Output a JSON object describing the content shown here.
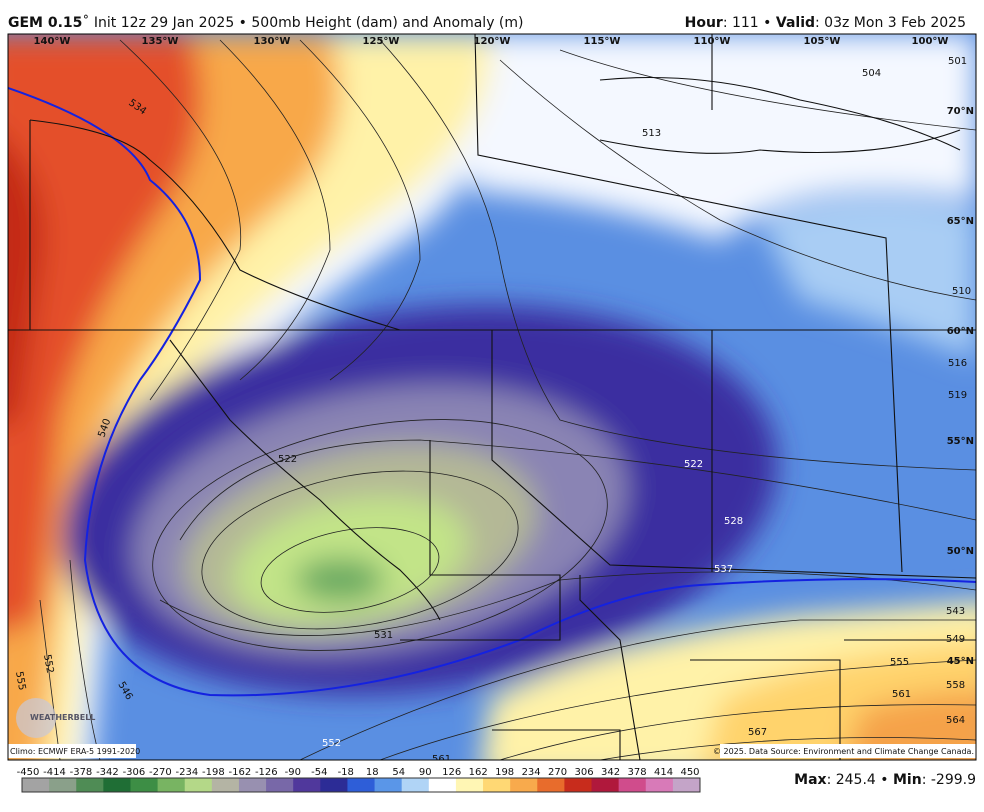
{
  "header": {
    "model": "GEM 0.15",
    "run": "˚ Init 12z 29 Jan 2025 • 500mb Height (dam) and Anomaly (m)",
    "hour_label": "Hour",
    "hour": ": 111 • ",
    "valid_label": "Valid",
    "valid": ": 03z Mon 3 Feb 2025"
  },
  "map": {
    "longitudes": [
      "140°W",
      "135°W",
      "130°W",
      "125°W",
      "120°W",
      "115°W",
      "110°W",
      "105°W",
      "100°W"
    ],
    "latitudes": [
      "70°N",
      "65°N",
      "60°N",
      "55°N",
      "50°N",
      "45°N"
    ],
    "contour_labels": [
      "534",
      "540",
      "546",
      "552",
      "555",
      "522",
      "531",
      "522",
      "528",
      "537",
      "543",
      "549",
      "555",
      "558",
      "561",
      "564",
      "567",
      "504",
      "501",
      "513",
      "510",
      "516",
      "519",
      "552",
      "561"
    ],
    "logo": "WEATHERBELL",
    "climo": "Climo: ECMWF ERA-5 1991-2020",
    "copyright": "© 2025. Data Source: Environment and Climate Change Canada."
  },
  "colorbar": {
    "ticks": [
      -450,
      -414,
      -378,
      -342,
      -306,
      -270,
      -234,
      -198,
      -162,
      -126,
      -90,
      -54,
      -18,
      18,
      54,
      90,
      126,
      162,
      198,
      234,
      270,
      306,
      342,
      378,
      414,
      450
    ],
    "colors": [
      "#a3a3a3",
      "#8aa08a",
      "#4f8c55",
      "#1f6e35",
      "#3d8e45",
      "#78b462",
      "#b4d888",
      "#b4b4a4",
      "#9890b0",
      "#7868a8",
      "#50389c",
      "#2c2c96",
      "#2e5ed8",
      "#5a96e8",
      "#b0d4f6",
      "#ffffff",
      "#fff6b4",
      "#ffd874",
      "#f8aa4c",
      "#e86c2c",
      "#c82c1c",
      "#b0183c",
      "#d04c8c",
      "#d87ab8",
      "#c4a4c8"
    ]
  },
  "stats": {
    "max_label": "Max",
    "max": ": 245.4 • ",
    "min_label": "Min",
    "min": ": -299.9"
  }
}
